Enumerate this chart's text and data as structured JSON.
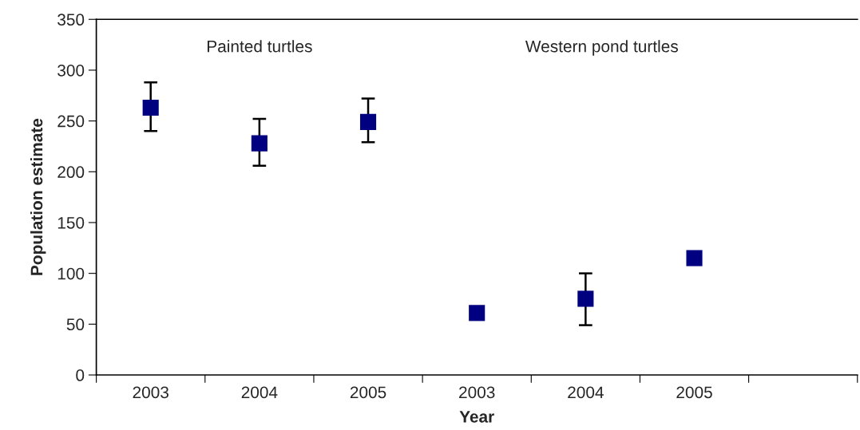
{
  "chart_data": {
    "type": "scatter",
    "categories": [
      "2003",
      "2004",
      "2005",
      "2003",
      "2004",
      "2005",
      null
    ],
    "values": [
      263,
      228,
      249,
      61,
      75,
      115,
      null
    ],
    "errors": [
      [
        240,
        288
      ],
      [
        206,
        252
      ],
      [
        229,
        272
      ],
      null,
      [
        49,
        100
      ],
      null,
      null
    ],
    "color": "#000080",
    "marker": "square",
    "xlabel": "Year",
    "ylabel": "Population estimate",
    "ylim": [
      0,
      350
    ],
    "yticks": [
      0,
      50,
      100,
      150,
      200,
      250,
      300,
      350
    ],
    "annotations": [
      "Painted turtles",
      "Western pond turtles"
    ],
    "grid": false
  }
}
